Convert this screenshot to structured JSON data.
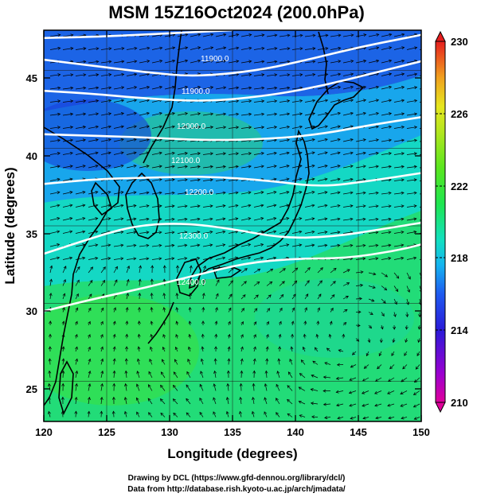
{
  "title": "MSM 15Z16Oct2024 (200.0hPa)",
  "xlabel": "Longitude (degrees)",
  "ylabel": "Latitude (degrees)",
  "credit_line1": "Drawing by DCL (https://www.gfd-dennou.org/library/dcl/)",
  "credit_line2": "Data from http://database.rish.kyoto-u.ac.jp/arch/jmadata/",
  "chart_data": {
    "type": "heatmap",
    "title": "MSM 15Z16Oct2024 (200.0hPa)",
    "xlabel": "Longitude (degrees)",
    "ylabel": "Latitude (degrees)",
    "xlim": [
      120,
      150
    ],
    "ylim": [
      22.4,
      47.6
    ],
    "x_ticks": [
      "120",
      "125",
      "130",
      "135",
      "140",
      "145",
      "150"
    ],
    "y_ticks": [
      "25",
      "30",
      "35",
      "40",
      "45"
    ],
    "colorbar": {
      "min": 210,
      "max": 230,
      "ticks": [
        "210",
        "214",
        "218",
        "222",
        "226",
        "230"
      ]
    },
    "contour_labels": [
      "11900.0",
      "11900.0",
      "12000.0",
      "12100.0",
      "12200.0",
      "12300.0",
      "12400.0"
    ],
    "contours": [
      {
        "label": "11900.0",
        "points": [
          [
            120,
            47.1
          ],
          [
            125,
            47.2
          ],
          [
            130,
            47.4
          ],
          [
            135,
            47.6
          ]
        ]
      },
      {
        "label": "11900.0",
        "points": [
          [
            120,
            45.7
          ],
          [
            124,
            45.3
          ],
          [
            128,
            44.9
          ],
          [
            132,
            44.6
          ],
          [
            137,
            45.0
          ],
          [
            141,
            45.7
          ],
          [
            145,
            46.5
          ],
          [
            150,
            47.3
          ]
        ]
      },
      {
        "label": "12000.0",
        "points": [
          [
            120,
            43.7
          ],
          [
            124,
            43.5
          ],
          [
            128,
            43.2
          ],
          [
            133,
            43.0
          ],
          [
            138,
            43.4
          ],
          [
            142,
            44.0
          ],
          [
            146,
            44.8
          ],
          [
            150,
            45.6
          ]
        ]
      },
      {
        "label": "12100.0",
        "points": [
          [
            120,
            40.9
          ],
          [
            124,
            40.8
          ],
          [
            128,
            40.7
          ],
          [
            133,
            40.5
          ],
          [
            138,
            40.6
          ],
          [
            142,
            40.9
          ],
          [
            146,
            41.5
          ],
          [
            150,
            42.0
          ]
        ]
      },
      {
        "label": "12200.0",
        "points": [
          [
            120,
            37.7
          ],
          [
            124,
            38.0
          ],
          [
            128,
            38.1
          ],
          [
            133,
            38.2
          ],
          [
            138,
            37.9
          ],
          [
            142,
            37.5
          ],
          [
            146,
            37.9
          ],
          [
            150,
            38.4
          ]
        ]
      },
      {
        "label": "12300.0",
        "points": [
          [
            120,
            33.2
          ],
          [
            123,
            34.0
          ],
          [
            127,
            35.0
          ],
          [
            131,
            35.2
          ],
          [
            135,
            34.8
          ],
          [
            139,
            34.2
          ],
          [
            143,
            34.3
          ],
          [
            147,
            34.8
          ],
          [
            150,
            35.2
          ]
        ]
      },
      {
        "label": "12400.0",
        "points": [
          [
            120,
            29.5
          ],
          [
            124,
            30.3
          ],
          [
            128,
            31.0
          ],
          [
            132,
            31.8
          ],
          [
            136,
            32.6
          ],
          [
            140,
            32.9
          ],
          [
            144,
            32.9
          ],
          [
            148,
            33.4
          ],
          [
            150,
            33.8
          ]
        ]
      }
    ]
  },
  "colors": {
    "colormap": [
      "#e0009a",
      "#9a00d0",
      "#2a1ad8",
      "#1e5af0",
      "#14b4f0",
      "#12e0c0",
      "#1ee650",
      "#5ae61e",
      "#b4e61e",
      "#e6e61e",
      "#f0a01e",
      "#e61e1e"
    ]
  }
}
